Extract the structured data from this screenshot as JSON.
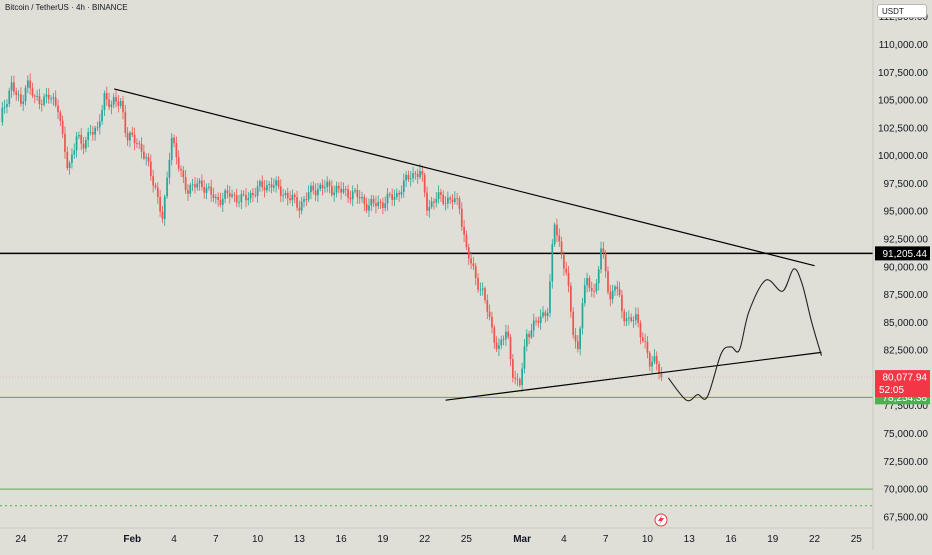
{
  "header": {
    "title": "Bitcoin / TetherUS · 4h · BINANCE",
    "currency_label": "USDT"
  },
  "colors": {
    "up": "#26a69a",
    "down": "#ef5350",
    "support": "#4caf50",
    "resistance": "#000000",
    "price_label": "#f23645"
  },
  "chart_data": {
    "type": "candlestick",
    "symbol": "Bitcoin / TetherUS",
    "timeframe": "4h",
    "exchange": "BINANCE",
    "y_axis": {
      "ticks": [
        67500,
        70000,
        72500,
        75000,
        77500,
        80000,
        82500,
        85000,
        87500,
        90000,
        92500,
        95000,
        97500,
        100000,
        102500,
        105000,
        107500,
        110000,
        112500
      ],
      "tick_labels": [
        "67,500.00",
        "70,000.00",
        "72,500.00",
        "75,000.00",
        "77,500.00",
        "80,000.00",
        "82,500.00",
        "85,000.00",
        "87,500.00",
        "90,000.00",
        "92,500.00",
        "95,000.00",
        "97,500.00",
        "100,000.00",
        "102,500.00",
        "105,000.00",
        "107,500.00",
        "110,000.00",
        "112,500.00"
      ],
      "range": [
        66500,
        114000
      ]
    },
    "x_axis": {
      "ticks": [
        {
          "label": "24",
          "day": -8,
          "bold": false
        },
        {
          "label": "27",
          "day": -5,
          "bold": false
        },
        {
          "label": "Feb",
          "day": 0,
          "bold": true
        },
        {
          "label": "4",
          "day": 3,
          "bold": false
        },
        {
          "label": "7",
          "day": 6,
          "bold": false
        },
        {
          "label": "10",
          "day": 9,
          "bold": false
        },
        {
          "label": "13",
          "day": 12,
          "bold": false
        },
        {
          "label": "16",
          "day": 15,
          "bold": false
        },
        {
          "label": "19",
          "day": 18,
          "bold": false
        },
        {
          "label": "22",
          "day": 21,
          "bold": false
        },
        {
          "label": "25",
          "day": 24,
          "bold": false
        },
        {
          "label": "Mar",
          "day": 28,
          "bold": true
        },
        {
          "label": "4",
          "day": 31,
          "bold": false
        },
        {
          "label": "7",
          "day": 34,
          "bold": false
        },
        {
          "label": "10",
          "day": 37,
          "bold": false
        },
        {
          "label": "13",
          "day": 40,
          "bold": false
        },
        {
          "label": "16",
          "day": 43,
          "bold": false
        },
        {
          "label": "19",
          "day": 46,
          "bold": false
        },
        {
          "label": "22",
          "day": 49,
          "bold": false
        },
        {
          "label": "25",
          "day": 52,
          "bold": false
        }
      ],
      "range_days": [
        -9.5,
        53.2
      ],
      "day_zero": "Feb 1"
    },
    "price_path": [
      [
        -9.5,
        103000
      ],
      [
        -8.7,
        106500
      ],
      [
        -8.0,
        104500
      ],
      [
        -7.6,
        106800
      ],
      [
        -7.0,
        105000
      ],
      [
        -6.0,
        105200
      ],
      [
        -5.3,
        104500
      ],
      [
        -5.0,
        101500
      ],
      [
        -4.6,
        98500
      ],
      [
        -4.0,
        102000
      ],
      [
        -3.6,
        100500
      ],
      [
        -3.0,
        102500
      ],
      [
        -2.5,
        102000
      ],
      [
        -2.0,
        105500
      ],
      [
        -1.5,
        104500
      ],
      [
        -0.8,
        105000
      ],
      [
        -0.4,
        101500
      ],
      [
        0.3,
        101500
      ],
      [
        1.0,
        99500
      ],
      [
        1.6,
        97500
      ],
      [
        2.2,
        94000
      ],
      [
        2.8,
        102000
      ],
      [
        3.4,
        98500
      ],
      [
        4.0,
        97000
      ],
      [
        5.0,
        97500
      ],
      [
        6.0,
        96000
      ],
      [
        7.0,
        96500
      ],
      [
        8.0,
        96000
      ],
      [
        9.0,
        97000
      ],
      [
        10.0,
        97500
      ],
      [
        11.0,
        96500
      ],
      [
        12.0,
        95500
      ],
      [
        13.0,
        97000
      ],
      [
        14.0,
        97200
      ],
      [
        15.0,
        96800
      ],
      [
        16.0,
        96500
      ],
      [
        17.0,
        95500
      ],
      [
        18.0,
        95800
      ],
      [
        19.0,
        96500
      ],
      [
        20.0,
        98300
      ],
      [
        20.7,
        98500
      ],
      [
        21.2,
        95300
      ],
      [
        21.8,
        96200
      ],
      [
        23.0,
        96000
      ],
      [
        23.5,
        95500
      ],
      [
        24.0,
        91500
      ],
      [
        24.6,
        89200
      ],
      [
        25.2,
        87600
      ],
      [
        25.8,
        84500
      ],
      [
        26.3,
        82500
      ],
      [
        26.9,
        84300
      ],
      [
        27.4,
        80000
      ],
      [
        27.8,
        79000
      ],
      [
        28.3,
        84000
      ],
      [
        28.8,
        84500
      ],
      [
        29.4,
        85700
      ],
      [
        29.9,
        86200
      ],
      [
        30.3,
        94200
      ],
      [
        30.7,
        92000
      ],
      [
        31.2,
        89000
      ],
      [
        31.7,
        84000
      ],
      [
        32.0,
        82500
      ],
      [
        32.3,
        86500
      ],
      [
        32.7,
        89000
      ],
      [
        33.2,
        87500
      ],
      [
        33.7,
        91500
      ],
      [
        34.0,
        90000
      ],
      [
        34.3,
        86800
      ],
      [
        34.7,
        88500
      ],
      [
        35.2,
        86000
      ],
      [
        35.7,
        85000
      ],
      [
        36.2,
        85400
      ],
      [
        36.7,
        83500
      ],
      [
        37.2,
        81000
      ],
      [
        37.6,
        82000
      ],
      [
        38.0,
        80078
      ]
    ],
    "horizontal_lines": [
      {
        "label": "91,205.44",
        "value": 91205.44,
        "color": "#000000"
      },
      {
        "label": "78,254.38",
        "value": 78254.38,
        "color": "#4caf50"
      },
      {
        "value": 70000,
        "color": "#4caf50"
      },
      {
        "value": 68500,
        "color": "#4caf50",
        "dashed": true
      }
    ],
    "trendlines": [
      {
        "name": "descending-resistance",
        "from": [
          -1.3,
          106000
        ],
        "to": [
          49.0,
          90100
        ]
      },
      {
        "name": "ascending-support",
        "from": [
          22.5,
          78000
        ],
        "to": [
          49.5,
          82300
        ]
      }
    ],
    "projection_path": [
      [
        38.5,
        80000
      ],
      [
        39.8,
        78000
      ],
      [
        40.6,
        78500
      ],
      [
        41.3,
        78300
      ],
      [
        42.3,
        82200
      ],
      [
        43.0,
        82800
      ],
      [
        43.6,
        82500
      ],
      [
        44.3,
        86000
      ],
      [
        45.5,
        88800
      ],
      [
        46.7,
        87800
      ],
      [
        47.5,
        89800
      ],
      [
        48.1,
        88500
      ],
      [
        48.8,
        85000
      ],
      [
        49.5,
        82000
      ]
    ],
    "current_price": {
      "label": "80,077.94",
      "value": 80077.94,
      "countdown": "52:05"
    }
  }
}
